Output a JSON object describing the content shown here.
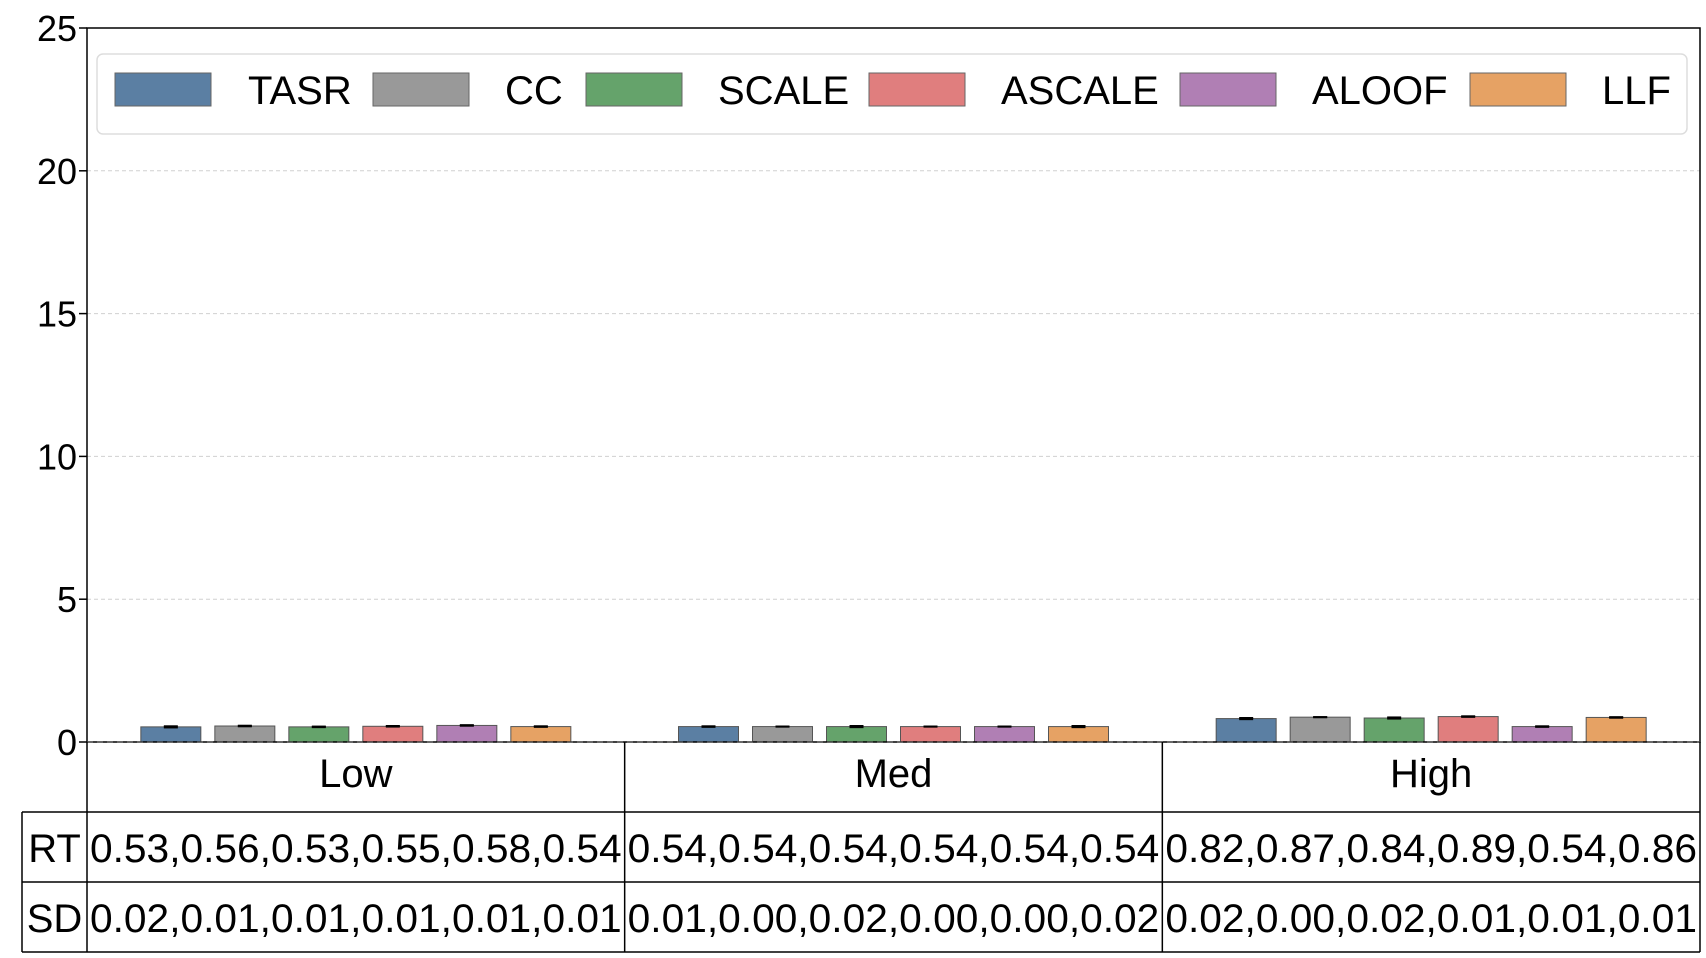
{
  "chart_data": {
    "type": "bar",
    "categories": [
      "Low",
      "Med",
      "High"
    ],
    "ylim": [
      0,
      25
    ],
    "yticks": [
      "0",
      "5",
      "10",
      "15",
      "20",
      "25"
    ],
    "grid": "horizontal-dashed",
    "legend_position": "top",
    "series": [
      {
        "name": "TASR",
        "color": "#5b7fa3",
        "values": [
          0.53,
          0.54,
          0.82
        ],
        "errors": [
          0.02,
          0.01,
          0.02
        ]
      },
      {
        "name": "CC",
        "color": "#999999",
        "values": [
          0.56,
          0.54,
          0.87
        ],
        "errors": [
          0.01,
          0.0,
          0.0
        ]
      },
      {
        "name": "SCALE",
        "color": "#65a36b",
        "values": [
          0.53,
          0.54,
          0.84
        ],
        "errors": [
          0.01,
          0.02,
          0.02
        ]
      },
      {
        "name": "ASCALE",
        "color": "#e07e7e",
        "values": [
          0.55,
          0.54,
          0.89
        ],
        "errors": [
          0.01,
          0.0,
          0.01
        ]
      },
      {
        "name": "ALOOF",
        "color": "#b07fb4",
        "values": [
          0.58,
          0.54,
          0.54
        ],
        "errors": [
          0.01,
          0.0,
          0.01
        ]
      },
      {
        "name": "LLF",
        "color": "#e6a264",
        "values": [
          0.54,
          0.54,
          0.86
        ],
        "errors": [
          0.01,
          0.02,
          0.01
        ]
      }
    ],
    "table": {
      "row_labels": [
        "RT",
        "SD"
      ],
      "rows": [
        [
          "0.53,0.56,0.53,0.55,0.58,0.54",
          "0.54,0.54,0.54,0.54,0.54,0.54",
          "0.82,0.87,0.84,0.89,0.54,0.86"
        ],
        [
          "0.02,0.01,0.01,0.01,0.01,0.01",
          "0.01,0.00,0.02,0.00,0.00,0.02",
          "0.02,0.00,0.02,0.01,0.01,0.01"
        ]
      ]
    }
  }
}
